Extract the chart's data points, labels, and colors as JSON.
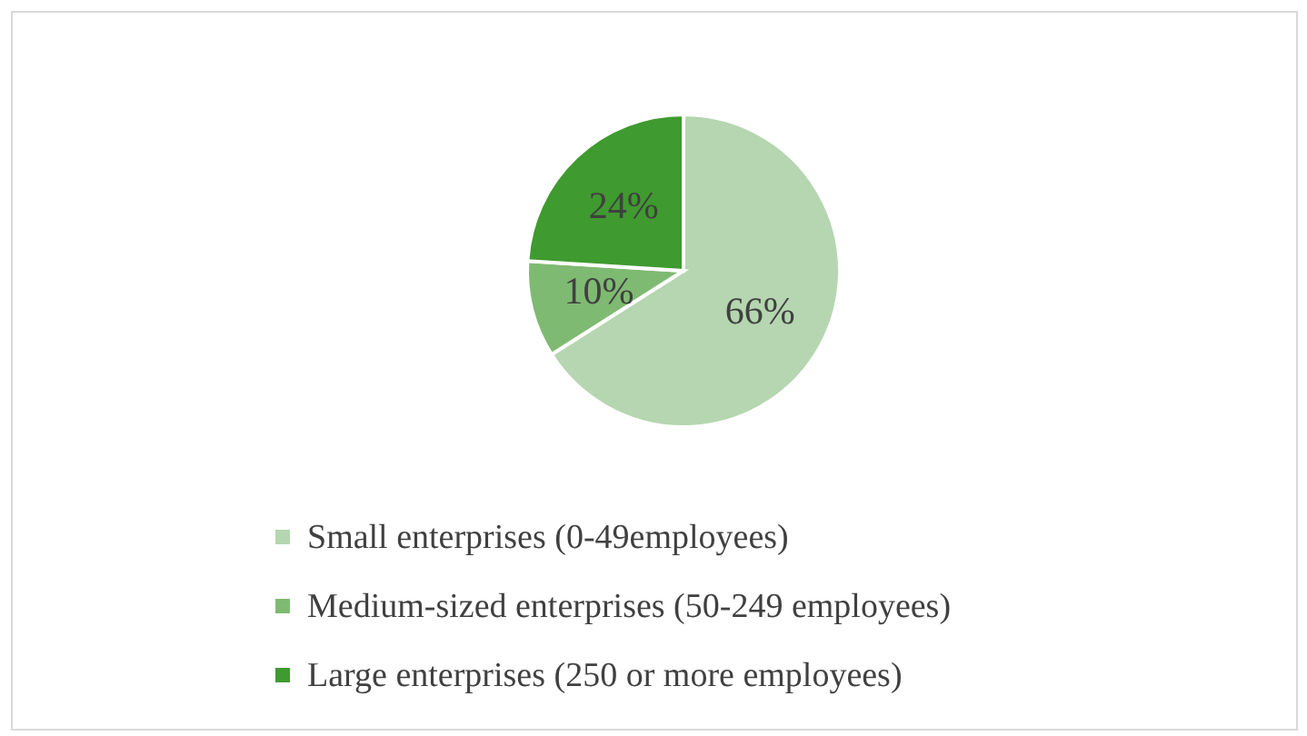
{
  "chart_data": {
    "type": "pie",
    "categories": [
      "Small enterprises (0-49employees)",
      "Medium-sized enterprises (50-249 employees)",
      "Large enterprises (250 or more employees)"
    ],
    "values": [
      66,
      10,
      24
    ],
    "colors": [
      "#b5d6b0",
      "#7fba72",
      "#3f9a2f"
    ],
    "value_labels": [
      "66%",
      "10%",
      "24%"
    ],
    "legend": "bottom"
  }
}
